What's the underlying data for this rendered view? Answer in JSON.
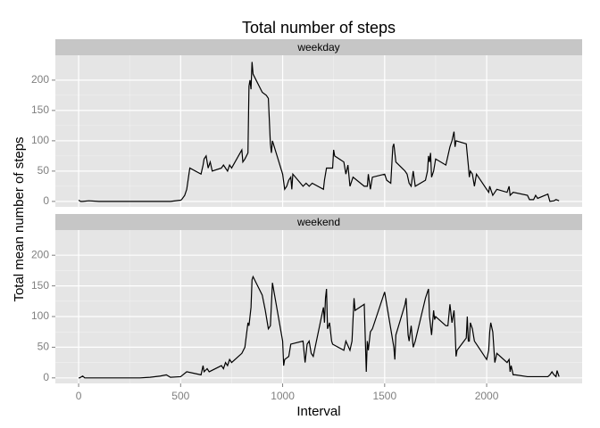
{
  "chart_data": {
    "type": "line",
    "title": "Total number of steps",
    "x_label": "Interval",
    "y_label": "Total mean number of steps",
    "color": "#000000",
    "grid": true,
    "xlim": [
      -114,
      2468
    ],
    "xticks": [
      0,
      500,
      1000,
      1500,
      2000
    ],
    "ylim": [
      -9,
      241
    ],
    "yticks": [
      0,
      50,
      100,
      150,
      200
    ],
    "panels": [
      {
        "name": "weekday",
        "x": [
          0,
          10,
          20,
          50,
          100,
          200,
          300,
          400,
          450,
          500,
          505,
          520,
          530,
          545,
          600,
          610,
          615,
          625,
          635,
          645,
          655,
          700,
          710,
          720,
          730,
          740,
          750,
          800,
          805,
          815,
          830,
          835,
          840,
          845,
          850,
          855,
          900,
          920,
          930,
          940,
          945,
          950,
          1000,
          1010,
          1020,
          1030,
          1040,
          1045,
          1050,
          1100,
          1115,
          1130,
          1145,
          1200,
          1205,
          1215,
          1230,
          1245,
          1250,
          1255,
          1300,
          1310,
          1320,
          1330,
          1345,
          1400,
          1415,
          1420,
          1430,
          1440,
          1500,
          1510,
          1530,
          1540,
          1545,
          1555,
          1600,
          1610,
          1620,
          1630,
          1640,
          1650,
          1700,
          1710,
          1715,
          1720,
          1725,
          1730,
          1740,
          1750,
          1800,
          1810,
          1820,
          1830,
          1840,
          1845,
          1850,
          1900,
          1910,
          1915,
          1920,
          1930,
          1940,
          1945,
          1950,
          2000,
          2010,
          2015,
          2030,
          2040,
          2050,
          2100,
          2110,
          2115,
          2130,
          2200,
          2210,
          2230,
          2240,
          2250,
          2300,
          2310,
          2330,
          2340,
          2355
        ],
        "values": [
          2,
          0,
          0,
          1,
          0,
          0,
          0,
          0,
          0,
          2,
          3,
          10,
          20,
          55,
          45,
          60,
          70,
          75,
          55,
          65,
          50,
          55,
          60,
          55,
          50,
          60,
          55,
          85,
          65,
          70,
          80,
          190,
          200,
          185,
          230,
          210,
          180,
          175,
          170,
          95,
          80,
          100,
          45,
          20,
          25,
          35,
          40,
          20,
          45,
          25,
          30,
          25,
          30,
          20,
          35,
          55,
          55,
          55,
          85,
          75,
          65,
          45,
          60,
          25,
          40,
          25,
          25,
          45,
          20,
          40,
          45,
          35,
          30,
          90,
          95,
          65,
          50,
          45,
          30,
          25,
          50,
          25,
          35,
          50,
          75,
          65,
          80,
          40,
          50,
          70,
          60,
          75,
          90,
          100,
          115,
          90,
          100,
          95,
          60,
          40,
          50,
          45,
          25,
          35,
          45,
          20,
          15,
          25,
          10,
          15,
          20,
          15,
          25,
          10,
          15,
          10,
          3,
          3,
          10,
          5,
          12,
          0,
          1,
          3,
          1
        ]
      },
      {
        "name": "weekend",
        "x": [
          0,
          5,
          20,
          30,
          100,
          200,
          300,
          350,
          400,
          430,
          450,
          500,
          530,
          600,
          610,
          615,
          630,
          640,
          700,
          710,
          720,
          730,
          740,
          750,
          800,
          815,
          830,
          835,
          845,
          850,
          855,
          900,
          915,
          930,
          940,
          950,
          1000,
          1005,
          1010,
          1030,
          1040,
          1100,
          1110,
          1120,
          1130,
          1140,
          1150,
          1200,
          1205,
          1210,
          1215,
          1220,
          1230,
          1240,
          1245,
          1300,
          1310,
          1330,
          1340,
          1350,
          1355,
          1400,
          1410,
          1415,
          1420,
          1430,
          1440,
          1500,
          1510,
          1520,
          1530,
          1545,
          1550,
          1555,
          1600,
          1605,
          1610,
          1615,
          1620,
          1630,
          1640,
          1650,
          1700,
          1710,
          1715,
          1720,
          1730,
          1740,
          1745,
          1750,
          1800,
          1810,
          1820,
          1830,
          1840,
          1845,
          1850,
          1855,
          1900,
          1905,
          1910,
          1915,
          1920,
          1930,
          1940,
          1950,
          2000,
          2010,
          2015,
          2020,
          2030,
          2040,
          2050,
          2100,
          2110,
          2115,
          2120,
          2130,
          2140,
          2200,
          2215,
          2300,
          2310,
          2320,
          2330,
          2340,
          2345,
          2355
        ],
        "values": [
          0,
          0,
          3,
          0,
          0,
          0,
          0,
          1,
          3,
          5,
          1,
          2,
          10,
          5,
          20,
          10,
          15,
          10,
          20,
          15,
          25,
          20,
          30,
          25,
          40,
          50,
          90,
          85,
          115,
          160,
          165,
          135,
          110,
          80,
          85,
          155,
          60,
          20,
          30,
          35,
          55,
          60,
          25,
          55,
          60,
          40,
          35,
          115,
          90,
          130,
          145,
          80,
          90,
          60,
          55,
          45,
          60,
          45,
          60,
          130,
          110,
          120,
          10,
          60,
          45,
          75,
          80,
          140,
          120,
          100,
          80,
          50,
          30,
          70,
          120,
          130,
          100,
          70,
          60,
          85,
          50,
          60,
          130,
          140,
          145,
          100,
          70,
          110,
          95,
          100,
          85,
          85,
          120,
          90,
          110,
          80,
          35,
          45,
          65,
          100,
          60,
          60,
          90,
          80,
          60,
          55,
          30,
          45,
          75,
          90,
          75,
          25,
          40,
          25,
          30,
          10,
          20,
          5,
          5,
          2,
          2,
          2,
          5,
          10,
          5,
          2,
          12,
          2
        ]
      }
    ]
  }
}
